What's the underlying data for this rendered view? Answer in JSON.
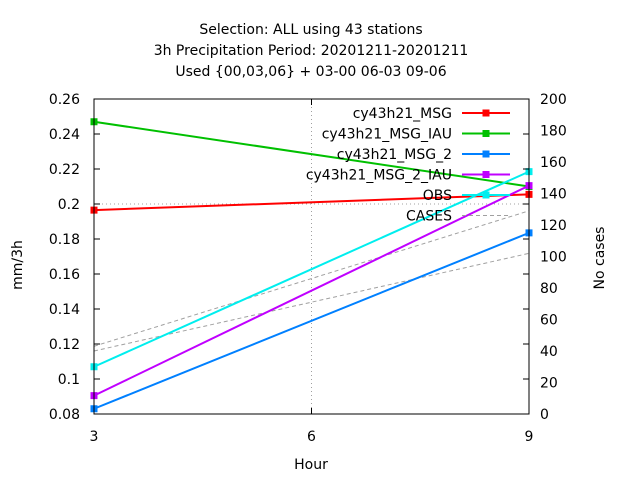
{
  "chart_data": {
    "type": "line",
    "title_lines": [
      "Selection: ALL using    43 stations",
      "3h Precipitation   Period: 20201211-20201211",
      "Used {00,03,06} + 03-00 06-03 09-06"
    ],
    "xlabel": "Hour",
    "ylabel": "mm/3h",
    "y2label": "No cases",
    "xlim": [
      3,
      9
    ],
    "ylim": [
      0.08,
      0.26
    ],
    "y2lim": [
      0,
      200
    ],
    "x_ticks": [
      3,
      6,
      9
    ],
    "x_tick_labels": [
      "3",
      "6",
      "9"
    ],
    "y_ticks": [
      0.08,
      0.1,
      0.12,
      0.14,
      0.16,
      0.18,
      0.2,
      0.22,
      0.24,
      0.26
    ],
    "y_tick_labels": [
      "0.08",
      "0.1",
      "0.12",
      "0.14",
      "0.16",
      "0.18",
      "0.2",
      "0.22",
      "0.24",
      "0.26"
    ],
    "y2_ticks": [
      0,
      20,
      40,
      60,
      80,
      100,
      120,
      140,
      160,
      180,
      200
    ],
    "y2_tick_labels": [
      "0",
      "20",
      "40",
      "60",
      "80",
      "100",
      "120",
      "140",
      "160",
      "180",
      "200"
    ],
    "grid": "dotted lines at x=6 and y=0.2 only",
    "legend_position": "top-right",
    "x": [
      3,
      9
    ],
    "series": [
      {
        "name": "cy43h21_MSG",
        "color": "#ff0000",
        "axis": "y",
        "style": "solid",
        "values": [
          0.1965,
          0.2055
        ]
      },
      {
        "name": "cy43h21_MSG_IAU",
        "color": "#00c000",
        "axis": "y",
        "style": "solid",
        "values": [
          0.247,
          0.21
        ]
      },
      {
        "name": "cy43h21_MSG_2",
        "color": "#0080ff",
        "axis": "y",
        "style": "solid",
        "values": [
          0.083,
          0.1835
        ]
      },
      {
        "name": "cy43h21_MSG_2_IAU",
        "color": "#c000ff",
        "axis": "y",
        "style": "solid",
        "values": [
          0.0905,
          0.2105
        ]
      },
      {
        "name": "OBS",
        "color": "#00eeee",
        "axis": "y",
        "style": "solid",
        "values": [
          0.107,
          0.2185
        ]
      }
    ],
    "cases_series": [
      {
        "name": "CASES",
        "color": "#a0a0a0",
        "axis": "y2",
        "style": "dashed",
        "values": [
          43,
          129
        ]
      },
      {
        "name": "",
        "color": "#a0a0a0",
        "axis": "y2",
        "style": "dashed",
        "values": [
          40,
          102
        ]
      }
    ]
  }
}
